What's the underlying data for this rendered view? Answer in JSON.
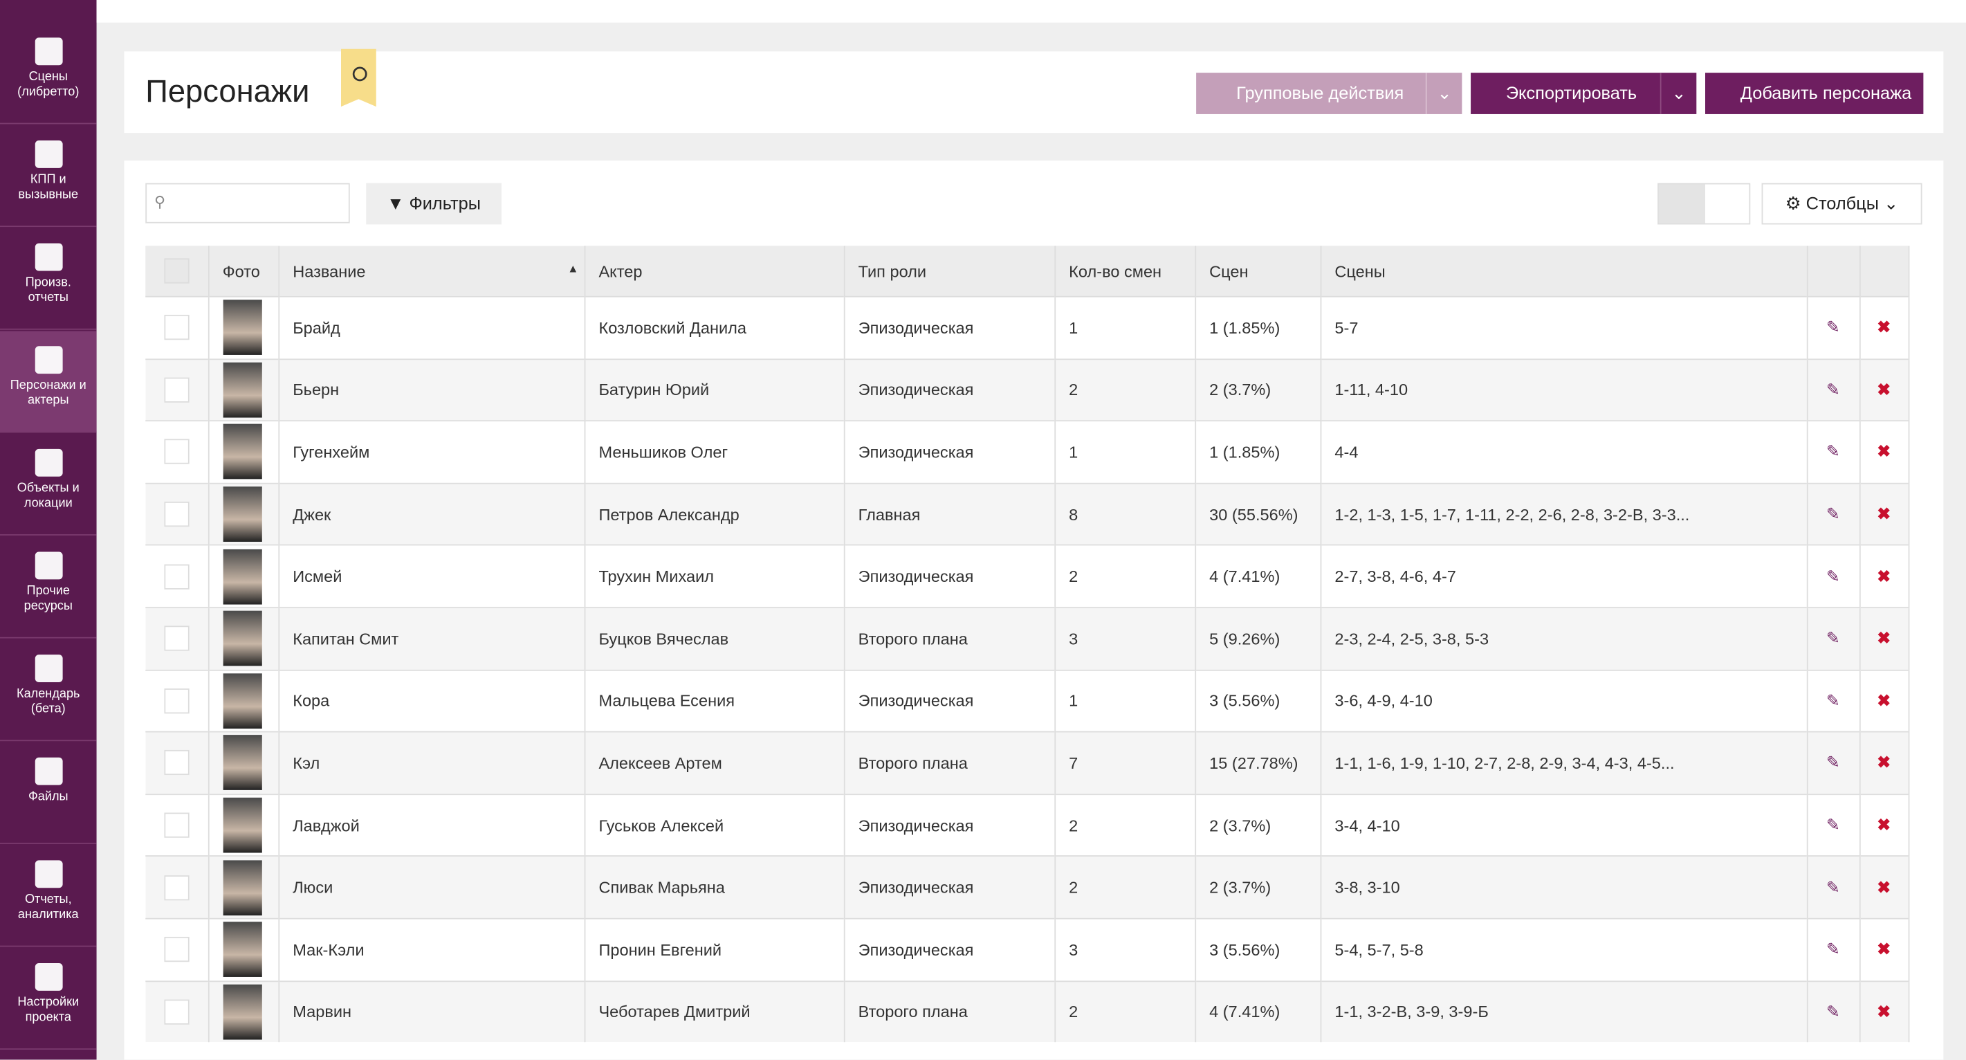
{
  "sidebar": [
    {
      "label": "Сцены (либретто)"
    },
    {
      "label": "КПП и вызывные"
    },
    {
      "label": "Произв. отчеты"
    },
    {
      "label": "Персонажи и актеры"
    },
    {
      "label": "Объекты и локации"
    },
    {
      "label": "Прочие ресурсы"
    },
    {
      "label": "Календарь (бета)"
    },
    {
      "label": "Файлы"
    },
    {
      "label": "Отчеты, аналитика"
    },
    {
      "label": "Настройки проекта"
    }
  ],
  "header": {
    "title": "Персонажи",
    "group_actions": "Групповые действия",
    "export": "Экспортировать",
    "add": "Добавить персонажа"
  },
  "toolbar": {
    "filters": "Фильтры",
    "columns": "Столбцы"
  },
  "table": {
    "columns": [
      "Фото",
      "Название",
      "Актер",
      "Тип роли",
      "Кол-во смен",
      "Сцен",
      "Сцены"
    ],
    "rows": [
      {
        "name": "Брайд",
        "actor": "Козловский Данила",
        "role": "Эпизодическая",
        "shifts": 1,
        "scene_count": "1 (1.85%)",
        "scenes": "5-7"
      },
      {
        "name": "Бьерн",
        "actor": "Батурин Юрий",
        "role": "Эпизодическая",
        "shifts": 2,
        "scene_count": "2 (3.7%)",
        "scenes": "1-11, 4-10"
      },
      {
        "name": "Гугенхейм",
        "actor": "Меньшиков Олег",
        "role": "Эпизодическая",
        "shifts": 1,
        "scene_count": "1 (1.85%)",
        "scenes": "4-4"
      },
      {
        "name": "Джек",
        "actor": "Петров Александр",
        "role": "Главная",
        "shifts": 8,
        "scene_count": "30 (55.56%)",
        "scenes": "1-2, 1-3, 1-5, 1-7, 1-11, 2-2, 2-6, 2-8, 3-2-В, 3-3..."
      },
      {
        "name": "Исмей",
        "actor": "Трухин Михаил",
        "role": "Эпизодическая",
        "shifts": 2,
        "scene_count": "4 (7.41%)",
        "scenes": "2-7, 3-8, 4-6, 4-7"
      },
      {
        "name": "Капитан Смит",
        "actor": "Буцков Вячеслав",
        "role": "Второго плана",
        "shifts": 3,
        "scene_count": "5 (9.26%)",
        "scenes": "2-3, 2-4, 2-5, 3-8, 5-3"
      },
      {
        "name": "Кора",
        "actor": "Мальцева Есения",
        "role": "Эпизодическая",
        "shifts": 1,
        "scene_count": "3 (5.56%)",
        "scenes": "3-6, 4-9, 4-10"
      },
      {
        "name": "Кэл",
        "actor": "Алексеев Артем",
        "role": "Второго плана",
        "shifts": 7,
        "scene_count": "15 (27.78%)",
        "scenes": "1-1, 1-6, 1-9, 1-10, 2-7, 2-8, 2-9, 3-4, 4-3, 4-5..."
      },
      {
        "name": "Лавджой",
        "actor": "Гуськов Алексей",
        "role": "Эпизодическая",
        "shifts": 2,
        "scene_count": "2 (3.7%)",
        "scenes": "3-4, 4-10"
      },
      {
        "name": "Люси",
        "actor": "Спивак Марьяна",
        "role": "Эпизодическая",
        "shifts": 2,
        "scene_count": "2 (3.7%)",
        "scenes": "3-8, 3-10"
      },
      {
        "name": "Мак-Кэли",
        "actor": "Пронин Евгений",
        "role": "Эпизодическая",
        "shifts": 3,
        "scene_count": "3 (5.56%)",
        "scenes": "5-4, 5-7, 5-8"
      },
      {
        "name": "Марвин",
        "actor": "Чеботарев Дмитрий",
        "role": "Второго плана",
        "shifts": 2,
        "scene_count": "4 (7.41%)",
        "scenes": "1-1, 3-2-В, 3-9, 3-9-Б"
      }
    ]
  }
}
